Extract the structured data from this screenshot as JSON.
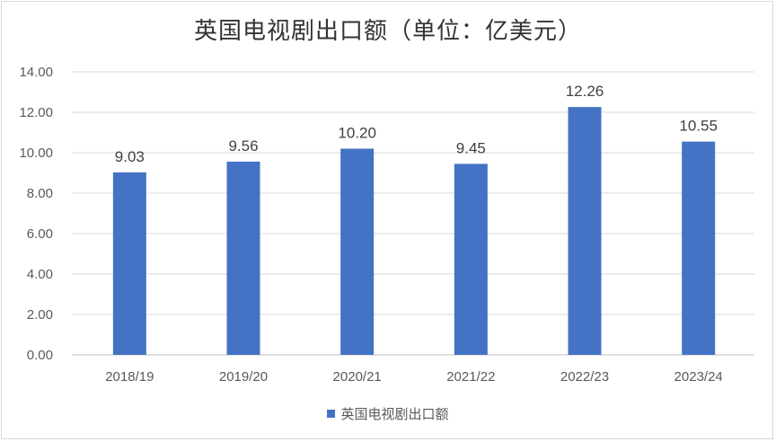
{
  "chart_data": {
    "type": "bar",
    "title": "英国电视剧出口额（单位：亿美元）",
    "categories": [
      "2018/19",
      "2019/20",
      "2020/21",
      "2021/22",
      "2022/23",
      "2023/24"
    ],
    "series": [
      {
        "name": "英国电视剧出口额",
        "values": [
          9.03,
          9.56,
          10.2,
          9.45,
          12.26,
          10.55
        ]
      }
    ],
    "data_labels": [
      "9.03",
      "9.56",
      "10.20",
      "9.45",
      "12.26",
      "10.55"
    ],
    "y_ticks": [
      "0.00",
      "2.00",
      "4.00",
      "6.00",
      "8.00",
      "10.00",
      "12.00",
      "14.00"
    ],
    "ylim": [
      0,
      14
    ],
    "grid": true,
    "legend_position": "bottom",
    "colors": {
      "bar": "#4472c4",
      "grid": "#d9d9d9",
      "axis": "#bfbfbf"
    }
  }
}
